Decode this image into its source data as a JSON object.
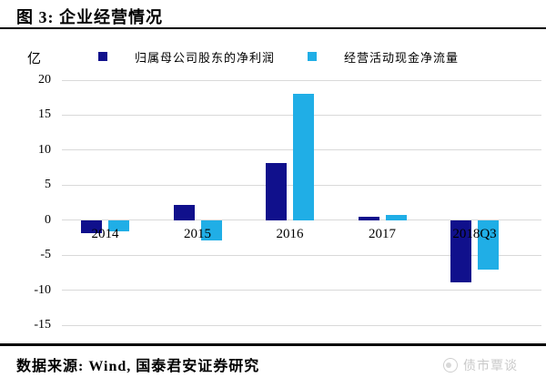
{
  "header": {
    "title": "图 3: 企业经营情况"
  },
  "chart_data": {
    "type": "bar",
    "title": "企业经营情况",
    "unit_label": "亿",
    "categories": [
      "2014",
      "2015",
      "2016",
      "2017",
      "2018Q3"
    ],
    "series": [
      {
        "name": "归属母公司股东的净利润",
        "color": "#10108c",
        "values": [
          -1.8,
          2.2,
          8.2,
          0.5,
          -8.9
        ]
      },
      {
        "name": "经营活动现金净流量",
        "color": "#20aee6",
        "values": [
          -1.6,
          -2.9,
          18.0,
          0.7,
          -7.1
        ]
      }
    ],
    "ylim": [
      -15,
      20
    ],
    "yticks": [
      20,
      15,
      10,
      5,
      0,
      -5,
      -10,
      -15
    ],
    "grid": true,
    "legend_position": "top"
  },
  "footer": {
    "source": "数据来源: Wind, 国泰君安证券研究",
    "watermark": "债市覃谈"
  },
  "colors": {
    "grid": "#d9d9d9",
    "text": "#000000",
    "watermark": "#c9c9c9"
  }
}
